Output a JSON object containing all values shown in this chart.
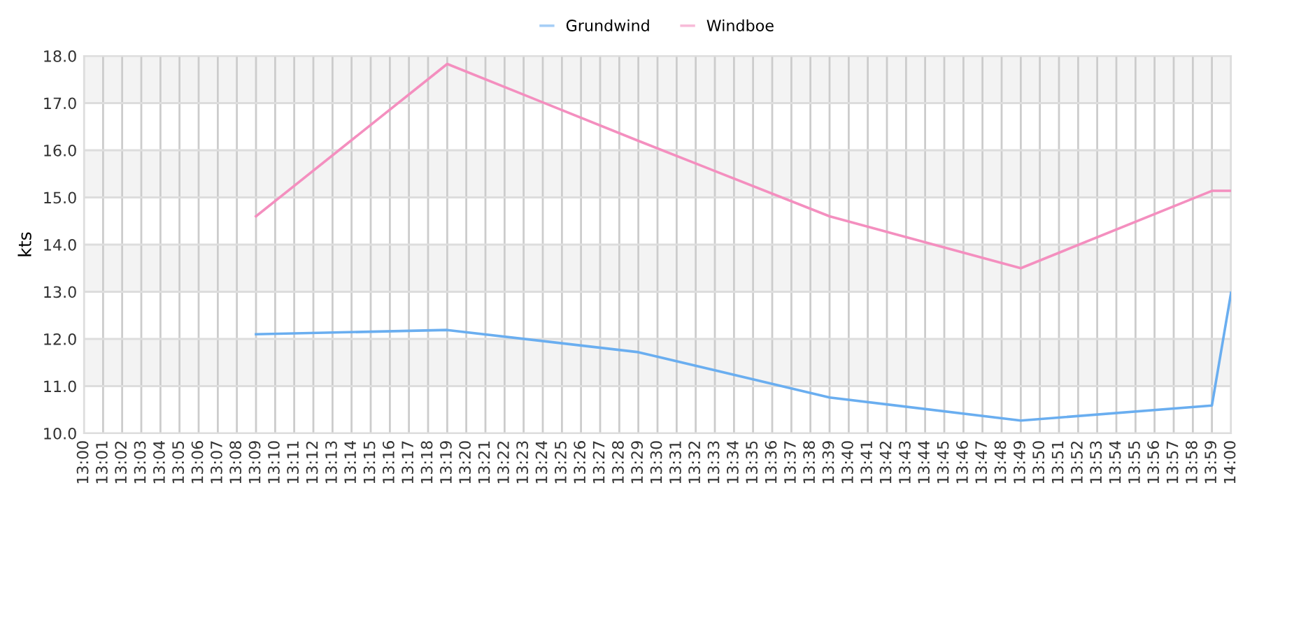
{
  "chart_data": {
    "type": "line",
    "ylabel": "kts",
    "legend": "top",
    "grid": true,
    "line_style": "solid",
    "marker": "none",
    "x": [
      13.15,
      13.3167,
      13.4833,
      13.65,
      13.8167,
      13.9833,
      14
    ],
    "series": [
      {
        "name": "Grundwind",
        "color": "#6aaef0",
        "values": [
          12.1,
          12.19,
          11.72,
          10.76,
          10.27,
          10.59,
          12.98
        ]
      },
      {
        "name": "Windboe",
        "color": "#f48fbf",
        "values": [
          14.6,
          17.83,
          16.2,
          14.6,
          13.5,
          15.14,
          15.14
        ]
      }
    ],
    "xlim": [
      13,
      14
    ],
    "ylim": [
      10,
      18
    ],
    "yticks": [
      {
        "value": 10,
        "label": "10.0"
      },
      {
        "value": 11,
        "label": "11.0"
      },
      {
        "value": 12,
        "label": "12.0"
      },
      {
        "value": 13,
        "label": "13.0"
      },
      {
        "value": 14,
        "label": "14.0"
      },
      {
        "value": 15,
        "label": "15.0"
      },
      {
        "value": 16,
        "label": "16.0"
      },
      {
        "value": 17,
        "label": "17.0"
      },
      {
        "value": 18,
        "label": "18.0"
      }
    ],
    "xticks": [
      {
        "value": 13,
        "label": "13:00"
      },
      {
        "value": 13.0167,
        "label": "13:01"
      },
      {
        "value": 13.0333,
        "label": "13:02"
      },
      {
        "value": 13.05,
        "label": "13:03"
      },
      {
        "value": 13.0667,
        "label": "13:04"
      },
      {
        "value": 13.0833,
        "label": "13:05"
      },
      {
        "value": 13.1,
        "label": "13:06"
      },
      {
        "value": 13.1167,
        "label": "13:07"
      },
      {
        "value": 13.1333,
        "label": "13:08"
      },
      {
        "value": 13.15,
        "label": "13:09"
      },
      {
        "value": 13.1667,
        "label": "13:10"
      },
      {
        "value": 13.1833,
        "label": "13:11"
      },
      {
        "value": 13.2,
        "label": "13:12"
      },
      {
        "value": 13.2167,
        "label": "13:13"
      },
      {
        "value": 13.2333,
        "label": "13:14"
      },
      {
        "value": 13.25,
        "label": "13:15"
      },
      {
        "value": 13.2667,
        "label": "13:16"
      },
      {
        "value": 13.2833,
        "label": "13:17"
      },
      {
        "value": 13.3,
        "label": "13:18"
      },
      {
        "value": 13.3167,
        "label": "13:19"
      },
      {
        "value": 13.3333,
        "label": "13:20"
      },
      {
        "value": 13.35,
        "label": "13:21"
      },
      {
        "value": 13.3667,
        "label": "13:22"
      },
      {
        "value": 13.3833,
        "label": "13:23"
      },
      {
        "value": 13.4,
        "label": "13:24"
      },
      {
        "value": 13.4167,
        "label": "13:25"
      },
      {
        "value": 13.4333,
        "label": "13:26"
      },
      {
        "value": 13.45,
        "label": "13:27"
      },
      {
        "value": 13.4667,
        "label": "13:28"
      },
      {
        "value": 13.4833,
        "label": "13:29"
      },
      {
        "value": 13.5,
        "label": "13:30"
      },
      {
        "value": 13.5167,
        "label": "13:31"
      },
      {
        "value": 13.5333,
        "label": "13:32"
      },
      {
        "value": 13.55,
        "label": "13:33"
      },
      {
        "value": 13.5667,
        "label": "13:34"
      },
      {
        "value": 13.5833,
        "label": "13:35"
      },
      {
        "value": 13.6,
        "label": "13:36"
      },
      {
        "value": 13.6167,
        "label": "13:37"
      },
      {
        "value": 13.6333,
        "label": "13:38"
      },
      {
        "value": 13.65,
        "label": "13:39"
      },
      {
        "value": 13.6667,
        "label": "13:40"
      },
      {
        "value": 13.6833,
        "label": "13:41"
      },
      {
        "value": 13.7,
        "label": "13:42"
      },
      {
        "value": 13.7167,
        "label": "13:43"
      },
      {
        "value": 13.7333,
        "label": "13:44"
      },
      {
        "value": 13.75,
        "label": "13:45"
      },
      {
        "value": 13.7667,
        "label": "13:46"
      },
      {
        "value": 13.7833,
        "label": "13:47"
      },
      {
        "value": 13.8,
        "label": "13:48"
      },
      {
        "value": 13.8167,
        "label": "13:49"
      },
      {
        "value": 13.8333,
        "label": "13:50"
      },
      {
        "value": 13.85,
        "label": "13:51"
      },
      {
        "value": 13.8667,
        "label": "13:52"
      },
      {
        "value": 13.8833,
        "label": "13:53"
      },
      {
        "value": 13.9,
        "label": "13:54"
      },
      {
        "value": 13.9167,
        "label": "13:55"
      },
      {
        "value": 13.9333,
        "label": "13:56"
      },
      {
        "value": 13.95,
        "label": "13:57"
      },
      {
        "value": 13.9667,
        "label": "13:58"
      },
      {
        "value": 13.9833,
        "label": "13:59"
      },
      {
        "value": 14,
        "label": "14:00"
      }
    ]
  }
}
